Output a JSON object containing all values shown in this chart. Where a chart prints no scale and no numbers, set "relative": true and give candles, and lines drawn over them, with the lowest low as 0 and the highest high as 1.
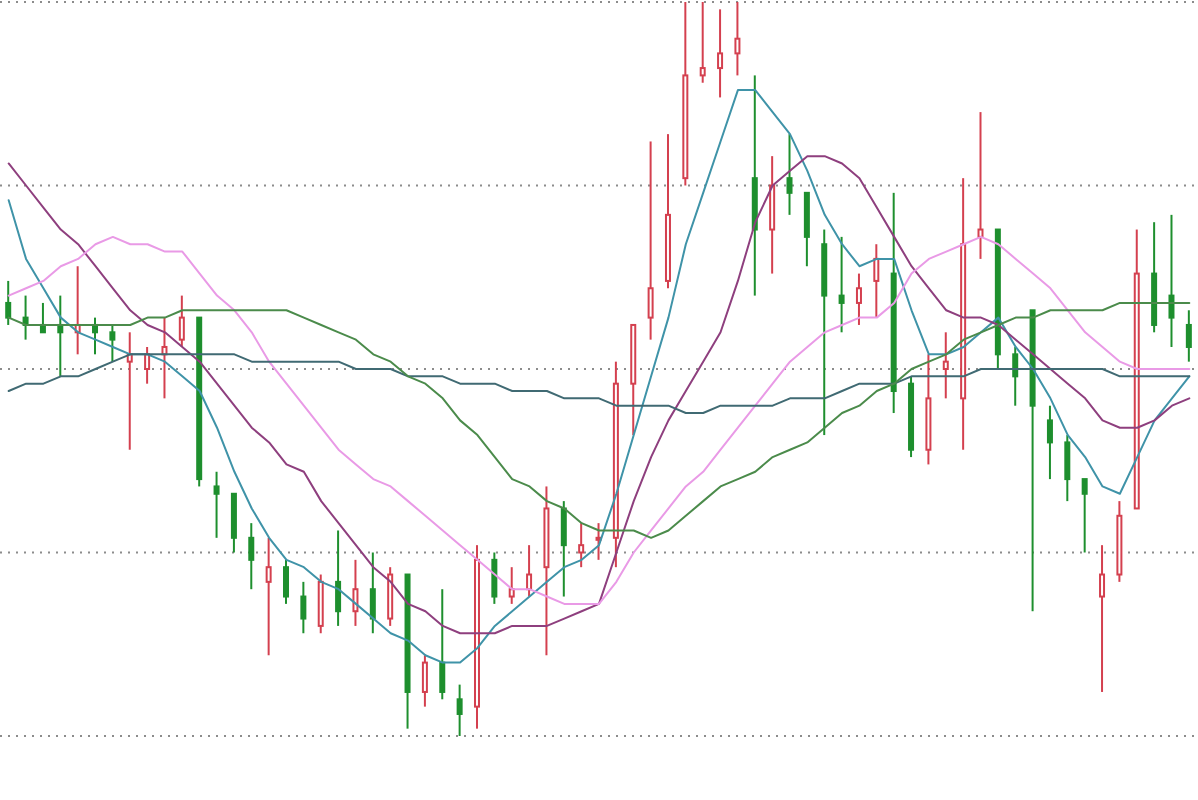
{
  "chart_data": {
    "type": "candlestick",
    "relative": true,
    "tick_labels": false,
    "grid": "y",
    "categories": [
      null,
      null,
      null,
      null,
      null,
      null,
      null,
      null,
      null,
      null,
      null,
      null,
      null,
      null,
      null,
      null,
      null,
      null,
      null,
      null,
      null,
      null,
      null,
      null,
      null,
      null,
      null,
      null,
      null,
      null,
      null,
      null,
      null,
      null,
      null,
      null,
      null,
      null,
      null,
      null,
      null,
      null,
      null,
      null,
      null,
      null,
      null,
      null,
      null,
      null,
      null,
      null,
      null,
      null,
      null,
      null,
      null,
      null,
      null,
      null,
      null,
      null,
      null,
      null,
      null,
      null,
      null,
      null,
      null
    ],
    "ohlc": [
      [
        0.59,
        0.62,
        0.56,
        0.57
      ],
      [
        0.57,
        0.6,
        0.54,
        0.56
      ],
      [
        0.56,
        0.59,
        0.55,
        0.55
      ],
      [
        0.56,
        0.6,
        0.49,
        0.55
      ],
      [
        0.55,
        0.64,
        0.52,
        0.56
      ],
      [
        0.56,
        0.57,
        0.52,
        0.55
      ],
      [
        0.55,
        0.56,
        0.51,
        0.54
      ],
      [
        0.51,
        0.55,
        0.39,
        0.52
      ],
      [
        0.5,
        0.53,
        0.48,
        0.52
      ],
      [
        0.52,
        0.57,
        0.46,
        0.53
      ],
      [
        0.54,
        0.6,
        0.53,
        0.57
      ],
      [
        0.57,
        0.57,
        0.34,
        0.35
      ],
      [
        0.34,
        0.36,
        0.27,
        0.33
      ],
      [
        0.33,
        0.33,
        0.25,
        0.27
      ],
      [
        0.27,
        0.29,
        0.2,
        0.24
      ],
      [
        0.21,
        0.27,
        0.11,
        0.23
      ],
      [
        0.23,
        0.24,
        0.18,
        0.19
      ],
      [
        0.19,
        0.21,
        0.14,
        0.16
      ],
      [
        0.15,
        0.22,
        0.14,
        0.21
      ],
      [
        0.21,
        0.28,
        0.15,
        0.17
      ],
      [
        0.17,
        0.24,
        0.15,
        0.2
      ],
      [
        0.2,
        0.25,
        0.14,
        0.16
      ],
      [
        0.16,
        0.23,
        0.15,
        0.22
      ],
      [
        0.22,
        0.22,
        0.01,
        0.06
      ],
      [
        0.06,
        0.11,
        0.04,
        0.1
      ],
      [
        0.1,
        0.2,
        0.05,
        0.06
      ],
      [
        0.05,
        0.07,
        0.0,
        0.03
      ],
      [
        0.04,
        0.26,
        0.01,
        0.24
      ],
      [
        0.24,
        0.25,
        0.18,
        0.19
      ],
      [
        0.19,
        0.23,
        0.18,
        0.2
      ],
      [
        0.2,
        0.26,
        0.19,
        0.22
      ],
      [
        0.23,
        0.34,
        0.11,
        0.31
      ],
      [
        0.31,
        0.32,
        0.19,
        0.26
      ],
      [
        0.25,
        0.29,
        0.23,
        0.26
      ],
      [
        0.27,
        0.29,
        0.24,
        0.27
      ],
      [
        0.27,
        0.51,
        0.23,
        0.48
      ],
      [
        0.48,
        0.56,
        0.41,
        0.56
      ],
      [
        0.57,
        0.81,
        0.54,
        0.61
      ],
      [
        0.62,
        0.82,
        0.61,
        0.71
      ],
      [
        0.76,
        1.0,
        0.75,
        0.9
      ],
      [
        0.9,
        1.0,
        0.89,
        0.91
      ],
      [
        0.91,
        0.99,
        0.87,
        0.93
      ],
      [
        0.93,
        1.0,
        0.9,
        0.95
      ],
      [
        0.76,
        0.9,
        0.6,
        0.69
      ],
      [
        0.69,
        0.79,
        0.63,
        0.75
      ],
      [
        0.76,
        0.82,
        0.71,
        0.74
      ],
      [
        0.74,
        0.74,
        0.64,
        0.68
      ],
      [
        0.67,
        0.69,
        0.41,
        0.6
      ],
      [
        0.6,
        0.68,
        0.55,
        0.59
      ],
      [
        0.59,
        0.63,
        0.56,
        0.61
      ],
      [
        0.62,
        0.67,
        0.57,
        0.65
      ],
      [
        0.63,
        0.74,
        0.44,
        0.47
      ],
      [
        0.48,
        0.49,
        0.38,
        0.39
      ],
      [
        0.39,
        0.52,
        0.37,
        0.46
      ],
      [
        0.5,
        0.55,
        0.46,
        0.51
      ],
      [
        0.46,
        0.76,
        0.39,
        0.67
      ],
      [
        0.68,
        0.85,
        0.65,
        0.69
      ],
      [
        0.69,
        0.69,
        0.5,
        0.52
      ],
      [
        0.52,
        0.53,
        0.45,
        0.49
      ],
      [
        0.58,
        0.58,
        0.17,
        0.45
      ],
      [
        0.43,
        0.45,
        0.35,
        0.4
      ],
      [
        0.4,
        0.41,
        0.32,
        0.35
      ],
      [
        0.35,
        0.35,
        0.25,
        0.33
      ],
      [
        0.19,
        0.26,
        0.06,
        0.22
      ],
      [
        0.22,
        0.32,
        0.21,
        0.3
      ],
      [
        0.31,
        0.69,
        0.31,
        0.63
      ],
      [
        0.63,
        0.7,
        0.55,
        0.56
      ],
      [
        0.6,
        0.71,
        0.53,
        0.57
      ],
      [
        0.56,
        0.58,
        0.51,
        0.53
      ]
    ],
    "colors": [
      "#1e8f2e",
      "#1e8f2e",
      "#1e8f2e",
      "#1e8f2e",
      "#d4404f",
      "#1e8f2e",
      "#1e8f2e",
      "#d4404f",
      "#d4404f",
      "#d4404f",
      "#d4404f",
      "#1e8f2e",
      "#1e8f2e",
      "#1e8f2e",
      "#1e8f2e",
      "#d4404f",
      "#1e8f2e",
      "#1e8f2e",
      "#d4404f",
      "#1e8f2e",
      "#d4404f",
      "#1e8f2e",
      "#d4404f",
      "#1e8f2e",
      "#d4404f",
      "#1e8f2e",
      "#1e8f2e",
      "#d4404f",
      "#1e8f2e",
      "#d4404f",
      "#d4404f",
      "#d4404f",
      "#1e8f2e",
      "#d4404f",
      "#d4404f",
      "#d4404f",
      "#d4404f",
      "#d4404f",
      "#d4404f",
      "#d4404f",
      "#d4404f",
      "#d4404f",
      "#d4404f",
      "#1e8f2e",
      "#d4404f",
      "#1e8f2e",
      "#1e8f2e",
      "#1e8f2e",
      "#1e8f2e",
      "#d4404f",
      "#d4404f",
      "#1e8f2e",
      "#1e8f2e",
      "#d4404f",
      "#d4404f",
      "#d4404f",
      "#d4404f",
      "#1e8f2e",
      "#1e8f2e",
      "#1e8f2e",
      "#1e8f2e",
      "#1e8f2e",
      "#1e8f2e",
      "#d4404f",
      "#d4404f",
      "#d4404f",
      "#1e8f2e",
      "#1e8f2e",
      "#1e8f2e"
    ],
    "series": [
      {
        "type": "line",
        "color": "#3f93a8",
        "values": [
          0.73,
          0.65,
          0.61,
          0.57,
          0.55,
          0.54,
          0.53,
          0.52,
          0.52,
          0.51,
          0.49,
          0.47,
          0.42,
          0.36,
          0.31,
          0.27,
          0.24,
          0.23,
          0.21,
          0.2,
          0.18,
          0.16,
          0.14,
          0.13,
          0.11,
          0.1,
          0.1,
          0.12,
          0.15,
          0.17,
          0.19,
          0.21,
          0.23,
          0.24,
          0.26,
          0.33,
          0.41,
          0.49,
          0.57,
          0.67,
          0.74,
          0.81,
          0.88,
          0.88,
          0.85,
          0.82,
          0.77,
          0.71,
          0.67,
          0.64,
          0.65,
          0.65,
          0.58,
          0.52,
          0.52,
          0.53,
          0.55,
          0.57,
          0.53,
          0.5,
          0.46,
          0.41,
          0.38,
          0.34,
          0.33,
          0.38,
          0.43,
          0.46,
          0.49
        ]
      },
      {
        "type": "line",
        "color": "#8e3f7e",
        "values": [
          0.78,
          0.75,
          0.72,
          0.69,
          0.67,
          0.64,
          0.61,
          0.58,
          0.56,
          0.55,
          0.53,
          0.51,
          0.48,
          0.45,
          0.42,
          0.4,
          0.37,
          0.36,
          0.32,
          0.29,
          0.26,
          0.23,
          0.21,
          0.18,
          0.17,
          0.15,
          0.14,
          0.14,
          0.14,
          0.15,
          0.15,
          0.15,
          0.16,
          0.17,
          0.18,
          0.25,
          0.32,
          0.38,
          0.43,
          0.47,
          0.51,
          0.55,
          0.62,
          0.7,
          0.75,
          0.77,
          0.79,
          0.79,
          0.78,
          0.76,
          0.72,
          0.68,
          0.64,
          0.61,
          0.58,
          0.57,
          0.57,
          0.56,
          0.54,
          0.52,
          0.5,
          0.48,
          0.46,
          0.43,
          0.42,
          0.42,
          0.43,
          0.45,
          0.46
        ]
      },
      {
        "type": "line",
        "color": "#e99ae6",
        "values": [
          0.6,
          0.61,
          0.62,
          0.64,
          0.65,
          0.67,
          0.68,
          0.67,
          0.67,
          0.66,
          0.66,
          0.63,
          0.6,
          0.58,
          0.55,
          0.51,
          0.48,
          0.45,
          0.42,
          0.39,
          0.37,
          0.35,
          0.34,
          0.32,
          0.3,
          0.28,
          0.26,
          0.24,
          0.22,
          0.2,
          0.2,
          0.19,
          0.18,
          0.18,
          0.18,
          0.21,
          0.25,
          0.28,
          0.31,
          0.34,
          0.36,
          0.39,
          0.42,
          0.45,
          0.48,
          0.51,
          0.53,
          0.55,
          0.56,
          0.57,
          0.57,
          0.59,
          0.63,
          0.65,
          0.66,
          0.67,
          0.68,
          0.67,
          0.65,
          0.63,
          0.61,
          0.58,
          0.55,
          0.53,
          0.51,
          0.5,
          0.5,
          0.5,
          0.5
        ]
      },
      {
        "type": "line",
        "color": "#406a73",
        "values": [
          0.47,
          0.48,
          0.48,
          0.49,
          0.49,
          0.5,
          0.51,
          0.52,
          0.52,
          0.52,
          0.52,
          0.52,
          0.52,
          0.52,
          0.51,
          0.51,
          0.51,
          0.51,
          0.51,
          0.51,
          0.5,
          0.5,
          0.5,
          0.49,
          0.49,
          0.49,
          0.48,
          0.48,
          0.48,
          0.47,
          0.47,
          0.47,
          0.46,
          0.46,
          0.46,
          0.45,
          0.45,
          0.45,
          0.45,
          0.44,
          0.44,
          0.45,
          0.45,
          0.45,
          0.45,
          0.46,
          0.46,
          0.46,
          0.47,
          0.48,
          0.48,
          0.48,
          0.49,
          0.49,
          0.49,
          0.49,
          0.5,
          0.5,
          0.5,
          0.5,
          0.5,
          0.5,
          0.5,
          0.5,
          0.49,
          0.49,
          0.49,
          0.49,
          0.49
        ]
      },
      {
        "type": "line",
        "color": "#4b8b4b",
        "values": [
          0.57,
          0.56,
          0.56,
          0.56,
          0.56,
          0.56,
          0.56,
          0.56,
          0.57,
          0.57,
          0.58,
          0.58,
          0.58,
          0.58,
          0.58,
          0.58,
          0.58,
          0.57,
          0.56,
          0.55,
          0.54,
          0.52,
          0.51,
          0.49,
          0.48,
          0.46,
          0.43,
          0.41,
          0.38,
          0.35,
          0.34,
          0.32,
          0.31,
          0.29,
          0.28,
          0.28,
          0.28,
          0.27,
          0.28,
          0.3,
          0.32,
          0.34,
          0.35,
          0.36,
          0.38,
          0.39,
          0.4,
          0.42,
          0.44,
          0.45,
          0.47,
          0.48,
          0.5,
          0.51,
          0.52,
          0.54,
          0.55,
          0.56,
          0.57,
          0.57,
          0.58,
          0.58,
          0.58,
          0.58,
          0.59,
          0.59,
          0.59,
          0.59,
          0.59
        ]
      }
    ]
  }
}
